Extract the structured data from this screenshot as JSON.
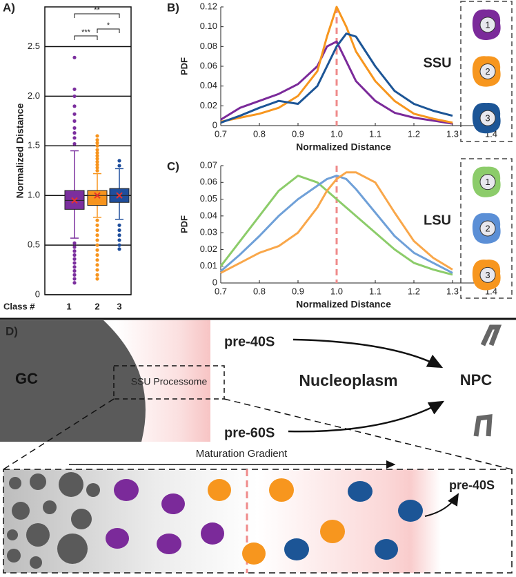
{
  "chart_data": [
    {
      "type": "box",
      "panel_label": "A)",
      "ylabel": "Normalized Distance",
      "xlabel": "Class #",
      "categories": [
        "1",
        "2",
        "3"
      ],
      "ylim": [
        0,
        2.9
      ],
      "yticks": [
        0,
        0.5,
        {
          "value": 1,
          "label": "1.0"
        },
        1.5,
        {
          "value": 2,
          "label": "2.0"
        },
        2.5
      ],
      "grid": true,
      "mean_color": "#e8322a",
      "series": [
        {
          "color": "#7b2f9e",
          "q1": 0.86,
          "median": 0.95,
          "q3": 1.05,
          "whisker_low": 0.57,
          "whisker_high": 1.45,
          "mean": 0.95,
          "outliers": [
            1.52,
            1.58,
            1.63,
            1.68,
            1.75,
            1.82,
            1.9,
            2.0,
            2.07,
            2.39,
            0.52,
            0.48,
            0.44,
            0.4,
            0.36,
            0.32,
            0.28,
            0.24,
            0.2,
            0.16,
            0.12
          ]
        },
        {
          "color": "#f7941d",
          "q1": 0.9,
          "median": 1.0,
          "q3": 1.05,
          "whisker_low": 0.78,
          "whisker_high": 1.22,
          "mean": 1.0,
          "outliers": [
            1.25,
            1.28,
            1.31,
            1.34,
            1.37,
            1.4,
            1.43,
            1.46,
            1.5,
            1.53,
            1.56,
            1.6,
            0.75,
            0.7,
            0.65,
            0.6,
            0.55,
            0.5,
            0.45,
            0.4,
            0.35,
            0.3,
            0.25,
            0.2,
            0.16
          ]
        },
        {
          "color": "#1f4e9c",
          "q1": 0.93,
          "median": 1.0,
          "q3": 1.07,
          "whisker_low": 0.76,
          "whisker_high": 1.27,
          "mean": 1.0,
          "outliers": [
            1.3,
            1.35,
            0.7,
            0.65,
            0.6,
            0.55,
            0.5,
            0.46
          ]
        }
      ],
      "annotations": [
        "**",
        "***",
        "*"
      ]
    },
    {
      "type": "line",
      "panel_label": "B)",
      "ylabel": "PDF",
      "xlabel": "Normalized Distance",
      "side_label": "SSU",
      "x": [
        0.7,
        0.75,
        0.8,
        0.85,
        0.9,
        0.95,
        0.975,
        1.0,
        1.025,
        1.05,
        1.1,
        1.15,
        1.2,
        1.25,
        1.3
      ],
      "xlim": [
        0.7,
        1.4
      ],
      "xticks": [
        0.7,
        0.8,
        0.9,
        {
          "value": 1,
          "label": "1.0"
        },
        1.1,
        1.2,
        1.3,
        1.4
      ],
      "ylim": [
        0,
        0.12
      ],
      "yticks": [
        0,
        0.02,
        0.04,
        0.06,
        0.08,
        {
          "value": 0.1,
          "label": "0.10"
        },
        0.12
      ],
      "vline": 1.0,
      "vline_color": "#ef8a8a",
      "series": [
        {
          "color": "#7b2a9a",
          "values": [
            0.006,
            0.018,
            0.025,
            0.032,
            0.042,
            0.06,
            0.08,
            0.085,
            0.065,
            0.045,
            0.025,
            0.013,
            0.008,
            0.005,
            0.002
          ]
        },
        {
          "color": "#f7961e",
          "values": [
            0.004,
            0.008,
            0.012,
            0.018,
            0.03,
            0.055,
            0.09,
            0.12,
            0.1,
            0.075,
            0.045,
            0.025,
            0.012,
            0.007,
            0.003
          ]
        },
        {
          "color": "#1c5596",
          "values": [
            0.003,
            0.01,
            0.018,
            0.025,
            0.022,
            0.04,
            0.06,
            0.08,
            0.093,
            0.09,
            0.06,
            0.035,
            0.022,
            0.015,
            0.01
          ]
        }
      ],
      "icons": [
        {
          "label": "1",
          "color": "#7b2a9a"
        },
        {
          "label": "2",
          "color": "#f7961e"
        },
        {
          "label": "3",
          "color": "#1c5596"
        }
      ]
    },
    {
      "type": "line",
      "panel_label": "C)",
      "ylabel": "PDF",
      "xlabel": "Normalized Distance",
      "side_label": "LSU",
      "x": [
        0.7,
        0.75,
        0.8,
        0.85,
        0.9,
        0.95,
        0.975,
        1.0,
        1.025,
        1.05,
        1.1,
        1.15,
        1.2,
        1.25,
        1.3
      ],
      "xlim": [
        0.7,
        1.4
      ],
      "xticks": [
        0.7,
        0.8,
        0.9,
        {
          "value": 1,
          "label": "1.0"
        },
        1.1,
        1.2,
        1.3,
        1.4
      ],
      "ylim": [
        0,
        0.07
      ],
      "yticks": [
        0,
        0.01,
        0.02,
        0.03,
        0.04,
        0.05,
        0.06,
        0.07
      ],
      "vline": 1.0,
      "vline_color": "#ef8a8a",
      "series": [
        {
          "color": "#8ccc6a",
          "values": [
            0.01,
            0.025,
            0.04,
            0.055,
            0.064,
            0.06,
            0.055,
            0.05,
            0.045,
            0.04,
            0.03,
            0.02,
            0.012,
            0.008,
            0.005
          ]
        },
        {
          "color": "#6fa0d8",
          "values": [
            0.007,
            0.017,
            0.028,
            0.04,
            0.05,
            0.058,
            0.062,
            0.064,
            0.062,
            0.056,
            0.042,
            0.028,
            0.018,
            0.012,
            0.006
          ]
        },
        {
          "color": "#f9a74a",
          "values": [
            0.006,
            0.012,
            0.018,
            0.022,
            0.03,
            0.045,
            0.055,
            0.062,
            0.066,
            0.066,
            0.06,
            0.042,
            0.025,
            0.015,
            0.008
          ]
        }
      ],
      "icons": [
        {
          "label": "1",
          "color": "#8ccc6a"
        },
        {
          "label": "2",
          "color": "#5b8fd6"
        },
        {
          "label": "3",
          "color": "#f7961e"
        }
      ]
    }
  ],
  "diagram": {
    "panel_label": "D)",
    "gc": "GC",
    "processome": "SSU Processome",
    "nucleoplasm": "Nucleoplasm",
    "npc": "NPC",
    "pre40s": "pre-40S",
    "pre60s": "pre-60S",
    "gradient": "Maturation Gradient",
    "exit": "pre-40S"
  }
}
